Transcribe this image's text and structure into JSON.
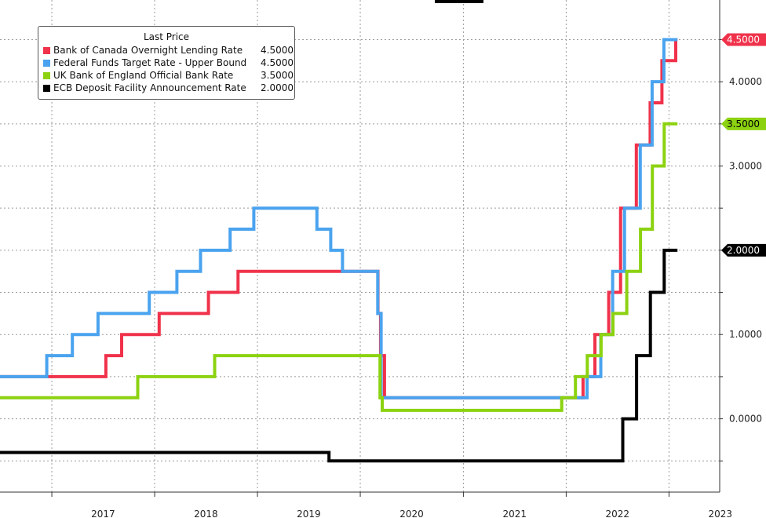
{
  "chart_data": {
    "type": "line",
    "legend": {
      "title": "Last Price",
      "placement": "top-left"
    },
    "series": [
      {
        "name": "Bank of Canada Overnight Lending Rate",
        "last_price": "4.5000",
        "color": "#f0324b",
        "points": [
          [
            "2016-07-01",
            0.5
          ],
          [
            "2017-07-12",
            0.75
          ],
          [
            "2017-09-06",
            1.0
          ],
          [
            "2018-01-17",
            1.25
          ],
          [
            "2018-07-11",
            1.5
          ],
          [
            "2018-10-24",
            1.75
          ],
          [
            "2020-03-04",
            1.25
          ],
          [
            "2020-03-13",
            0.75
          ],
          [
            "2020-03-27",
            0.25
          ],
          [
            "2022-03-02",
            0.5
          ],
          [
            "2022-04-13",
            1.0
          ],
          [
            "2022-06-01",
            1.5
          ],
          [
            "2022-07-13",
            2.5
          ],
          [
            "2022-09-07",
            3.25
          ],
          [
            "2022-10-26",
            3.75
          ],
          [
            "2022-12-07",
            4.25
          ],
          [
            "2023-01-25",
            4.5
          ],
          [
            "2023-01-31",
            4.5
          ]
        ]
      },
      {
        "name": "Federal Funds Target Rate - Upper Bound",
        "last_price": "4.5000",
        "color": "#4aa3ef",
        "points": [
          [
            "2016-07-01",
            0.5
          ],
          [
            "2016-12-14",
            0.75
          ],
          [
            "2017-03-15",
            1.0
          ],
          [
            "2017-06-14",
            1.25
          ],
          [
            "2017-12-13",
            1.5
          ],
          [
            "2018-03-21",
            1.75
          ],
          [
            "2018-06-13",
            2.0
          ],
          [
            "2018-09-26",
            2.25
          ],
          [
            "2018-12-19",
            2.5
          ],
          [
            "2019-07-31",
            2.25
          ],
          [
            "2019-09-18",
            2.0
          ],
          [
            "2019-10-30",
            1.75
          ],
          [
            "2020-03-03",
            1.25
          ],
          [
            "2020-03-15",
            0.25
          ],
          [
            "2022-03-16",
            0.5
          ],
          [
            "2022-05-04",
            1.0
          ],
          [
            "2022-06-15",
            1.75
          ],
          [
            "2022-07-27",
            2.5
          ],
          [
            "2022-09-21",
            3.25
          ],
          [
            "2022-11-02",
            4.0
          ],
          [
            "2022-12-14",
            4.5
          ],
          [
            "2023-01-31",
            4.5
          ]
        ]
      },
      {
        "name": "UK Bank of England Official Bank Rate",
        "last_price": "3.5000",
        "color": "#8cd211",
        "points": [
          [
            "2016-07-01",
            0.25
          ],
          [
            "2017-11-02",
            0.5
          ],
          [
            "2018-08-02",
            0.75
          ],
          [
            "2020-03-11",
            0.25
          ],
          [
            "2020-03-19",
            0.1
          ],
          [
            "2021-12-16",
            0.25
          ],
          [
            "2022-02-03",
            0.5
          ],
          [
            "2022-03-17",
            0.75
          ],
          [
            "2022-05-05",
            1.0
          ],
          [
            "2022-06-16",
            1.25
          ],
          [
            "2022-08-04",
            1.75
          ],
          [
            "2022-09-22",
            2.25
          ],
          [
            "2022-11-03",
            3.0
          ],
          [
            "2022-12-15",
            3.5
          ],
          [
            "2023-01-31",
            3.5
          ]
        ]
      },
      {
        "name": "ECB Deposit Facility Announcement Rate",
        "last_price": "2.0000",
        "color": "#000000",
        "points": [
          [
            "2016-07-01",
            -0.4
          ],
          [
            "2019-09-12",
            -0.5
          ],
          [
            "2022-07-21",
            0.0
          ],
          [
            "2022-09-08",
            0.75
          ],
          [
            "2022-10-27",
            1.5
          ],
          [
            "2022-12-15",
            2.0
          ],
          [
            "2023-01-31",
            2.0
          ]
        ]
      }
    ],
    "x_axis": {
      "ticks": [
        "2017",
        "2018",
        "2019",
        "2020",
        "2021",
        "2022",
        "2023"
      ],
      "range": [
        "2016-07-01",
        "2023-06-30"
      ]
    },
    "y_axis": {
      "position": "right",
      "tick_labels": [
        "0.0000",
        "1.0000",
        "2.0000",
        "3.0000",
        "4.0000"
      ],
      "tick_values": [
        0,
        1,
        2,
        3,
        4
      ],
      "range": [
        -0.87,
        4.97
      ]
    },
    "grid": true
  }
}
